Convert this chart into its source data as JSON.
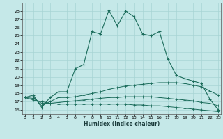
{
  "title": "",
  "xlabel": "Humidex (Indice chaleur)",
  "background_color": "#c5e8e8",
  "grid_color": "#a8d4d4",
  "line_color": "#1a6b5a",
  "x_ticks": [
    0,
    1,
    2,
    3,
    4,
    5,
    6,
    7,
    8,
    9,
    10,
    11,
    12,
    13,
    14,
    15,
    16,
    17,
    18,
    19,
    20,
    21,
    22,
    23
  ],
  "y_ticks": [
    16,
    17,
    18,
    19,
    20,
    21,
    22,
    23,
    24,
    25,
    26,
    27,
    28
  ],
  "xlim": [
    -0.3,
    23.3
  ],
  "ylim": [
    15.5,
    29.0
  ],
  "series": [
    [
      17.5,
      17.8,
      16.3,
      17.5,
      18.2,
      18.2,
      21.0,
      21.5,
      25.5,
      25.2,
      28.1,
      26.2,
      28.0,
      27.3,
      25.2,
      25.0,
      25.5,
      22.2,
      20.2,
      19.8,
      19.5,
      19.2,
      17.3,
      16.0
    ],
    [
      17.5,
      17.6,
      16.5,
      17.0,
      17.5,
      17.5,
      17.6,
      17.8,
      18.0,
      18.2,
      18.5,
      18.7,
      18.9,
      19.0,
      19.1,
      19.2,
      19.3,
      19.3,
      19.3,
      19.2,
      19.0,
      18.8,
      18.3,
      17.8
    ],
    [
      17.5,
      17.4,
      16.8,
      16.8,
      16.9,
      17.0,
      17.1,
      17.2,
      17.3,
      17.4,
      17.5,
      17.5,
      17.6,
      17.6,
      17.6,
      17.6,
      17.5,
      17.4,
      17.3,
      17.2,
      17.1,
      16.9,
      16.8,
      16.5
    ],
    [
      17.5,
      17.2,
      17.0,
      16.8,
      16.7,
      16.7,
      16.7,
      16.7,
      16.7,
      16.7,
      16.7,
      16.7,
      16.7,
      16.6,
      16.6,
      16.5,
      16.5,
      16.4,
      16.3,
      16.2,
      16.1,
      16.0,
      15.9,
      15.8
    ]
  ]
}
